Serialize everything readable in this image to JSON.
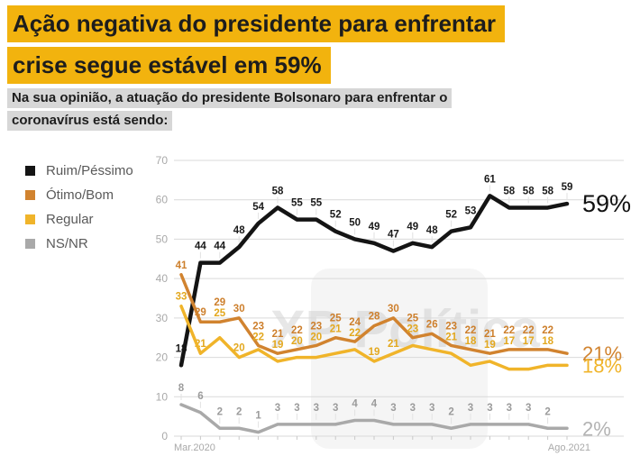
{
  "title": {
    "line1": "Ação negativa do presidente para enfrentar",
    "line2": "crise segue estável em 59%"
  },
  "subtitle": {
    "line1": "Na sua opinião, a atuação do presidente Bolsonaro para enfrentar o",
    "line2": "coronavírus está sendo:"
  },
  "watermark": "XP Política",
  "colors": {
    "highlight": "#F2B30E",
    "subtitle_highlight": "#d7d7d7",
    "black_series": "#141414",
    "orange_series": "#d1832f",
    "yellow_series": "#f0b42a",
    "gray_series": "#a9a9a9",
    "grid": "#d9d9d9",
    "axis_text": "#a9a9a9"
  },
  "chart_data": {
    "type": "line",
    "title": "",
    "xlabel": "",
    "ylabel": "",
    "ylim": [
      0,
      70
    ],
    "yticks": [
      0,
      10,
      20,
      30,
      40,
      50,
      60,
      70
    ],
    "grid": true,
    "legend_position": "left",
    "x_axis": {
      "start_label": "Mar.2020",
      "end_label": "Ago.2021"
    },
    "n_points": 21,
    "series": [
      {
        "name": "Ruim/Péssimo",
        "color": "#141414",
        "label_color": "#1a1a1a",
        "width": 4.5,
        "placement": "above-leader",
        "end_label": "59%",
        "end_label_size": 27,
        "end_label_color": "#111111",
        "values": [
          18,
          44,
          44,
          48,
          54,
          58,
          55,
          55,
          52,
          50,
          49,
          47,
          49,
          48,
          52,
          53,
          61,
          58,
          58,
          58,
          59
        ],
        "labels": [
          "18",
          "44",
          "44",
          "48",
          "54",
          "58",
          "55",
          "55",
          "52",
          "50",
          "49",
          "47",
          "49",
          "48",
          "52",
          "53",
          "61",
          "58",
          "58",
          "58",
          "59"
        ]
      },
      {
        "name": "Ótimo/Bom",
        "color": "#d1832f",
        "label_color": "#cd7f2c",
        "width": 3.5,
        "placement": "above",
        "end_label": "21%",
        "end_label_size": 22,
        "end_label_color": "#d1832f",
        "values": [
          41,
          29,
          29,
          30,
          23,
          21,
          22,
          23,
          25,
          24,
          28,
          30,
          25,
          26,
          23,
          22,
          21,
          22,
          22,
          22,
          21
        ],
        "labels": [
          "41",
          "29",
          "29",
          "30",
          "23",
          "21",
          "22",
          "23",
          "25",
          "24",
          "28",
          "30",
          "25",
          "26",
          "23",
          "22",
          "21",
          "22",
          "22",
          "22",
          ""
        ]
      },
      {
        "name": "Regular",
        "color": "#f0b42a",
        "label_color": "#e3a81f",
        "width": 3.5,
        "placement": "stack-below-orange",
        "end_label": "18%",
        "end_label_size": 22,
        "end_label_color": "#f0b42a",
        "values": [
          33,
          21,
          25,
          20,
          22,
          19,
          20,
          20,
          21,
          22,
          19,
          21,
          23,
          22,
          21,
          18,
          19,
          17,
          17,
          18,
          18
        ],
        "labels": [
          "33",
          "21",
          "25",
          "20",
          "22",
          "19",
          "20",
          "20",
          "21",
          "22",
          "19",
          "21",
          "23",
          "",
          "21",
          "18",
          "19",
          "17",
          "17",
          "18",
          ""
        ]
      },
      {
        "name": "NS/NR",
        "color": "#a9a9a9",
        "label_color": "#9b9b9b",
        "width": 3.5,
        "placement": "above-leader",
        "end_label": "2%",
        "end_label_size": 22,
        "end_label_color": "#b3b3b3",
        "values": [
          8,
          6,
          2,
          2,
          1,
          3,
          3,
          3,
          3,
          4,
          4,
          3,
          3,
          3,
          2,
          3,
          3,
          3,
          3,
          2,
          2
        ],
        "labels": [
          "8",
          "6",
          "2",
          "2",
          "1",
          "3",
          "3",
          "3",
          "3",
          "4",
          "4",
          "3",
          "3",
          "3",
          "2",
          "3",
          "3",
          "3",
          "3",
          "2",
          ""
        ]
      }
    ]
  }
}
